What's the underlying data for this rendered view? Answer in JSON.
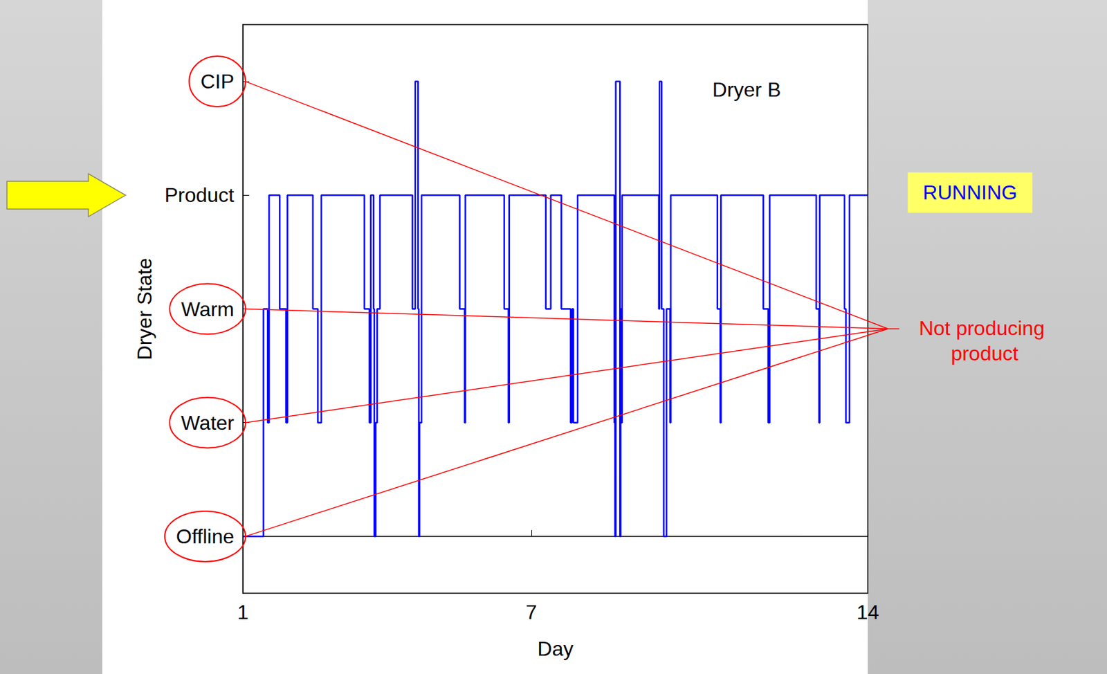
{
  "chart_data": {
    "type": "line",
    "line_style": "step",
    "color": "#0000ff",
    "xlabel": "Day",
    "ylabel": "Dryer State",
    "xlim": [
      1,
      14
    ],
    "xticks": [
      1,
      7,
      14
    ],
    "ylim": [
      -0.5,
      4.5
    ],
    "yticks": [
      {
        "value": 0,
        "label": "Offline"
      },
      {
        "value": 1,
        "label": "Water"
      },
      {
        "value": 2,
        "label": "Warm"
      },
      {
        "value": 3,
        "label": "Product"
      },
      {
        "value": 4,
        "label": "CIP"
      }
    ],
    "grid": false,
    "x": [
      1,
      1.426,
      1.514,
      1.543,
      1.764,
      1.896,
      1.925,
      2.454,
      2.557,
      2.63,
      3.526,
      3.629,
      3.659,
      3.717,
      3.732,
      3.761,
      3.791,
      3.85,
      4.525,
      4.584,
      4.643,
      4.658,
      4.672,
      4.716,
      5.509,
      5.612,
      5.627,
      6.435,
      6.523,
      6.538,
      7.301,
      7.404,
      7.624,
      7.816,
      7.845,
      7.874,
      7.962,
      8.726,
      8.741,
      8.756,
      8.844,
      8.858,
      8.873,
      8.888,
      9.652,
      9.667,
      9.71,
      9.754,
      9.813,
      9.886,
      9.9,
      10.871,
      10.93,
      10.945,
      11.826,
      11.929,
      11.958,
      12.927,
      12.986,
      13,
      13.515,
      13.545,
      13.618,
      14
    ],
    "values": [
      0,
      2,
      1,
      3,
      2,
      1,
      3,
      2,
      1,
      3,
      2,
      1,
      3,
      2,
      0,
      1,
      2,
      3,
      2,
      4,
      2,
      0,
      1,
      3,
      2,
      1,
      3,
      2,
      1,
      3,
      2,
      3,
      2,
      1,
      2,
      1,
      3,
      1,
      0,
      4,
      0,
      2,
      1,
      3,
      2,
      4,
      2,
      0,
      2,
      1,
      3,
      2,
      1,
      3,
      2,
      1,
      3,
      2,
      1,
      3,
      2,
      1,
      3,
      3
    ],
    "annotations": [
      {
        "text": "Dryer B"
      },
      {
        "text": "RUNNING",
        "target": "Product"
      },
      {
        "text": "Not producing product",
        "targets": [
          "CIP",
          "Warm",
          "Water",
          "Offline"
        ]
      }
    ]
  }
}
